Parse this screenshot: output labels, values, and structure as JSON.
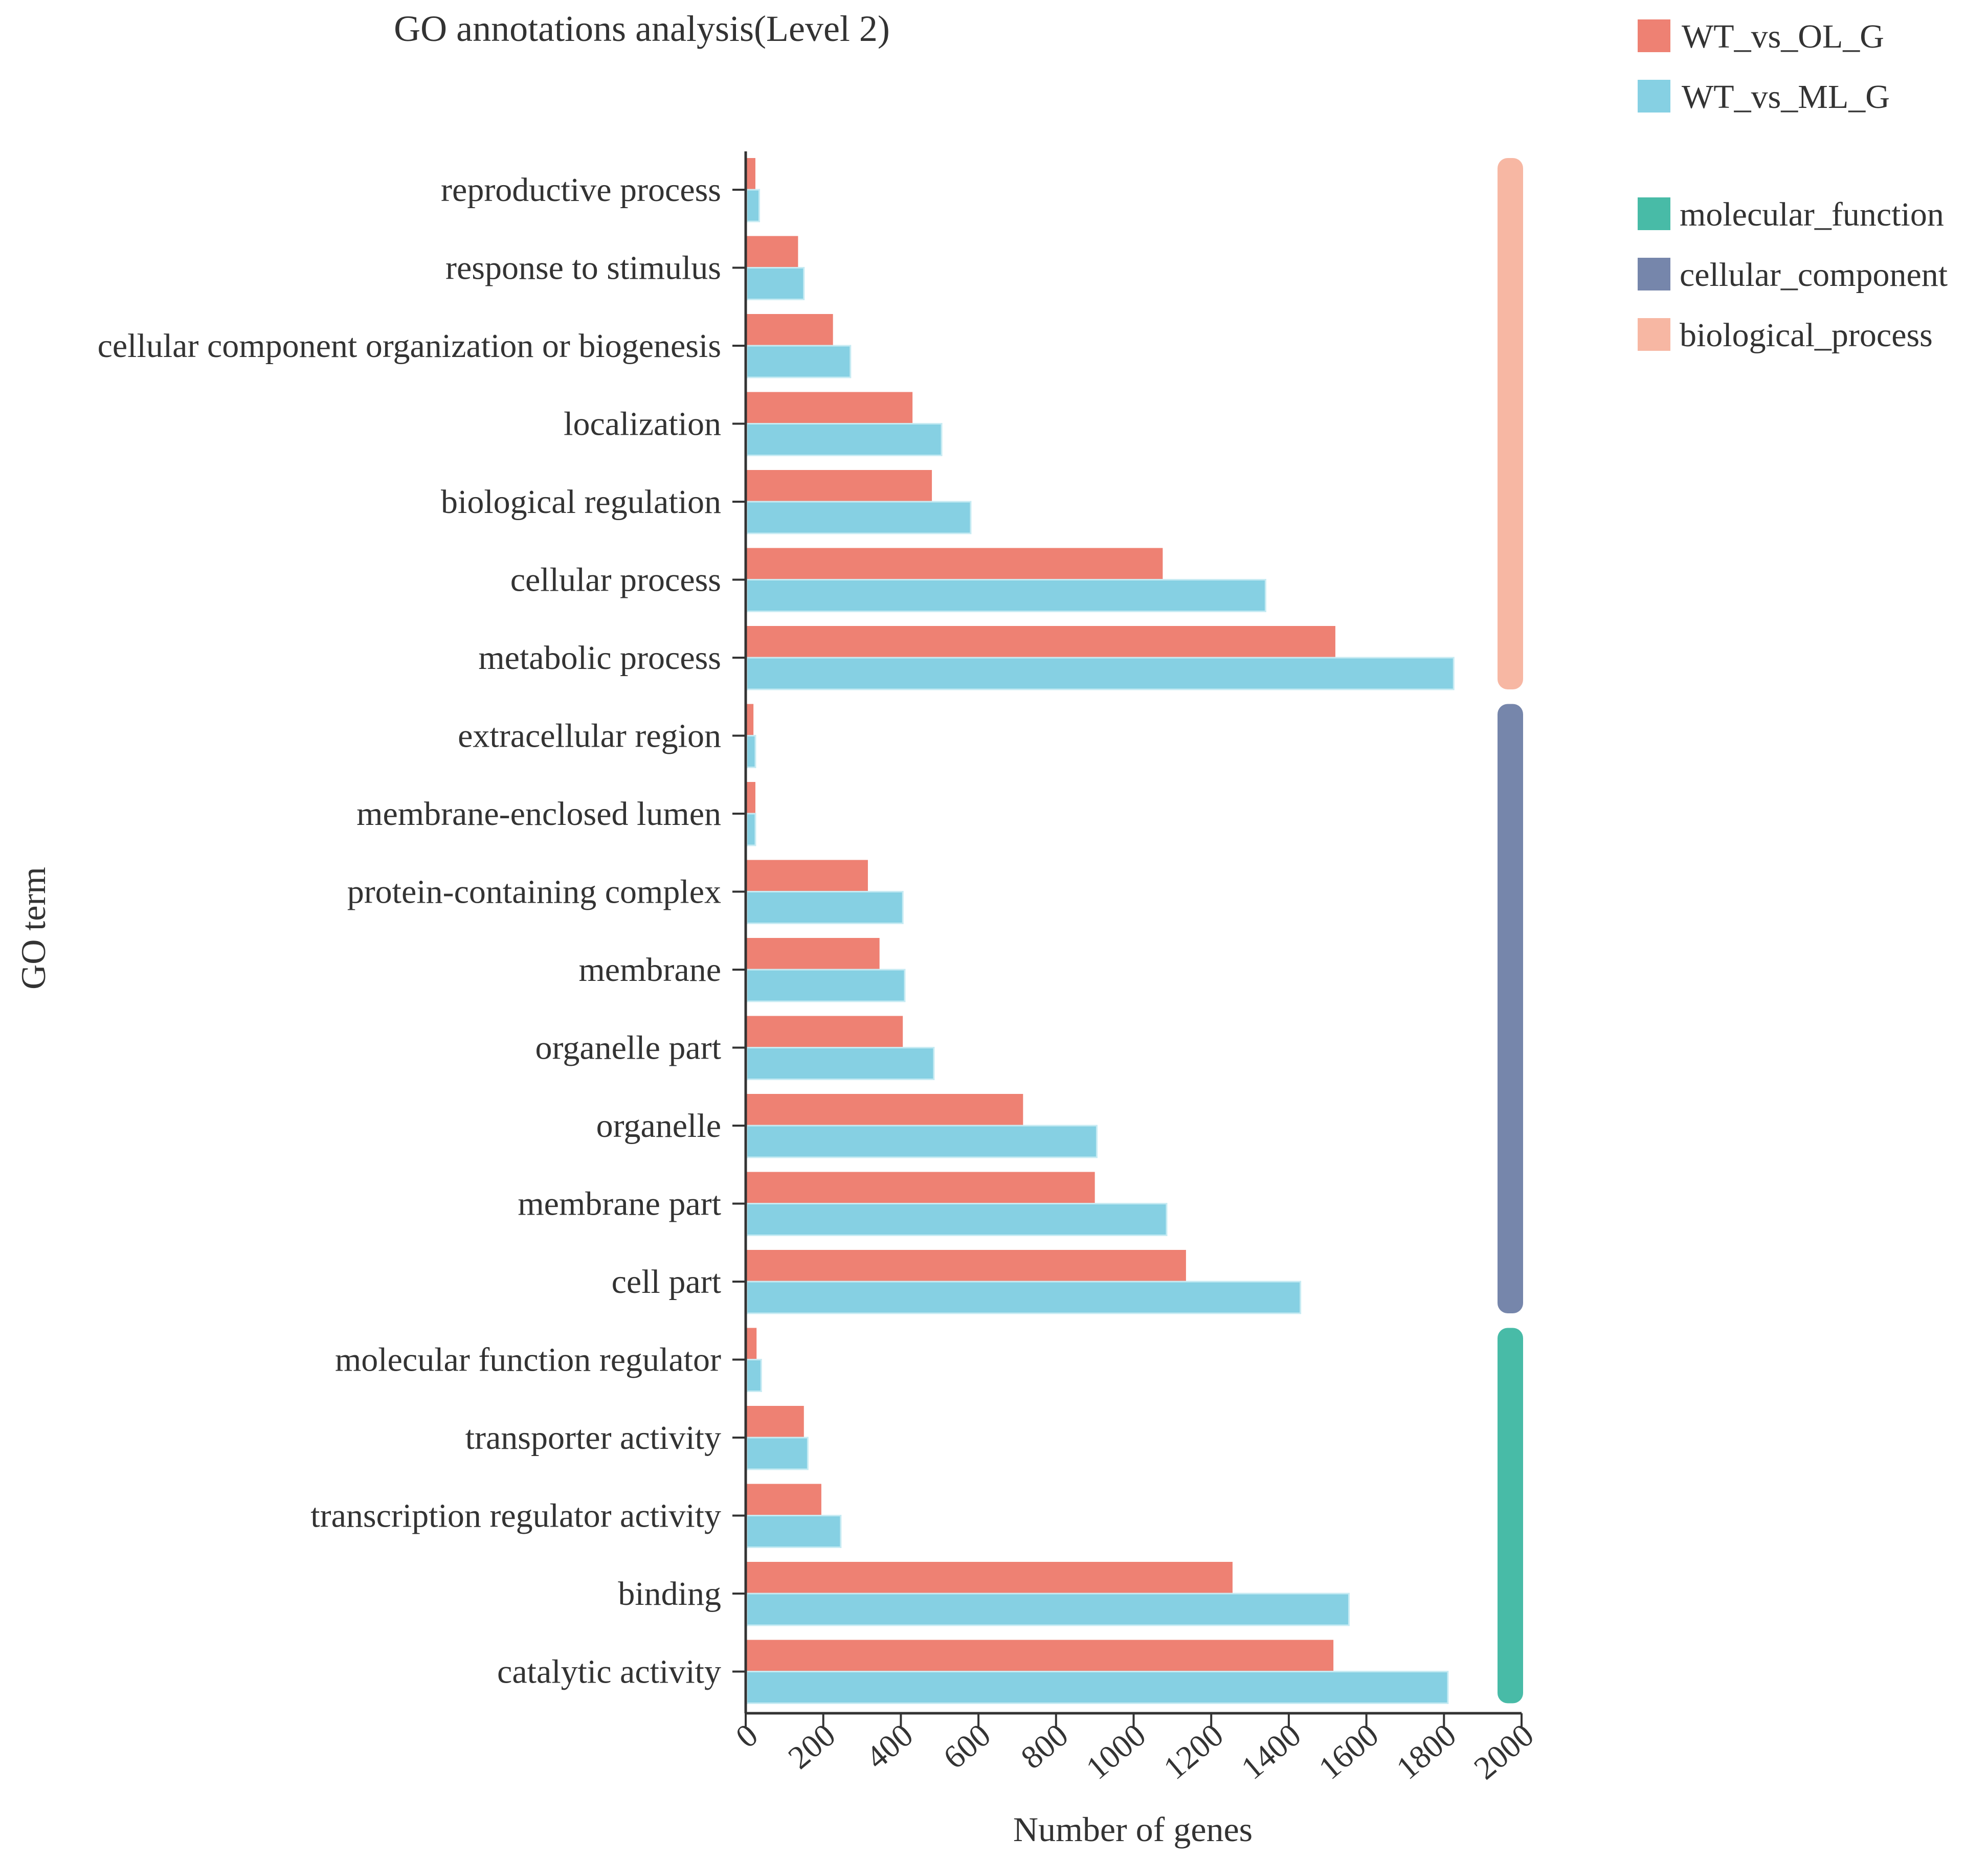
{
  "chart_data": {
    "type": "bar",
    "orientation": "horizontal",
    "title": "GO annotations analysis(Level 2)",
    "xlabel": "Number of genes",
    "ylabel": "GO term",
    "xlim": [
      0,
      2000
    ],
    "xticks": [
      "0",
      "200",
      "400",
      "600",
      "800",
      "1000",
      "1200",
      "1400",
      "1600",
      "1800",
      "2000"
    ],
    "xtick_values": [
      0,
      200,
      400,
      600,
      800,
      1000,
      1200,
      1400,
      1600,
      1800,
      2000
    ],
    "grid": false,
    "legend_position": "top-right",
    "categories": [
      "reproductive process",
      "response to stimulus",
      "cellular component organization or biogenesis",
      "localization",
      "biological regulation",
      "cellular process",
      "metabolic process",
      "extracellular region",
      "membrane-enclosed lumen",
      "protein-containing complex",
      "membrane",
      "organelle part",
      "organelle",
      "membrane part",
      "cell part",
      "molecular function regulator",
      "transporter activity",
      "transcription regulator activity",
      "binding",
      "catalytic activity"
    ],
    "series": [
      {
        "name": "WT_vs_OL_G",
        "color": "#ee8173",
        "values": [
          25,
          135,
          225,
          430,
          480,
          1075,
          1520,
          20,
          25,
          315,
          345,
          405,
          715,
          900,
          1135,
          28,
          150,
          195,
          1255,
          1515
        ]
      },
      {
        "name": "WT_vs_ML_G",
        "color": "#86d0e3",
        "values": [
          35,
          150,
          270,
          505,
          580,
          1340,
          1825,
          25,
          25,
          405,
          410,
          485,
          905,
          1085,
          1430,
          40,
          160,
          245,
          1555,
          1810
        ]
      }
    ],
    "groups": [
      {
        "name": "biological_process",
        "color": "#f7b7a3",
        "start_index": 0,
        "end_index": 6
      },
      {
        "name": "cellular_component",
        "color": "#7686ab",
        "start_index": 7,
        "end_index": 14
      },
      {
        "name": "molecular_function",
        "color": "#48bba7",
        "start_index": 15,
        "end_index": 19
      }
    ],
    "group_legend_order": [
      "molecular_function",
      "cellular_component",
      "biological_process"
    ]
  }
}
